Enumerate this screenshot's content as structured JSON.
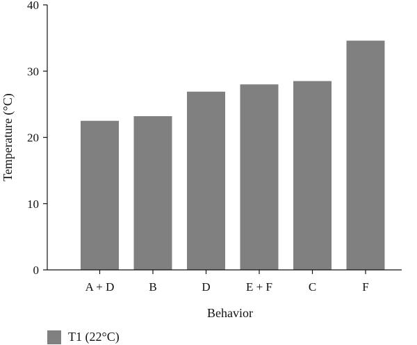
{
  "chart_data": {
    "type": "bar",
    "categories": [
      "A + D",
      "B",
      "D",
      "E + F",
      "C",
      "F"
    ],
    "series": [
      {
        "name": "T1 (22°C)",
        "color": "#808080",
        "values": [
          22.5,
          23.2,
          26.9,
          28.0,
          28.5,
          34.6
        ]
      }
    ],
    "xlabel": "Behavior",
    "ylabel": "Temperature (°C)",
    "ylim": [
      0,
      40
    ],
    "yticks": [
      0,
      10,
      20,
      30,
      40
    ],
    "grid": false,
    "legend_position": "bottom-left"
  }
}
